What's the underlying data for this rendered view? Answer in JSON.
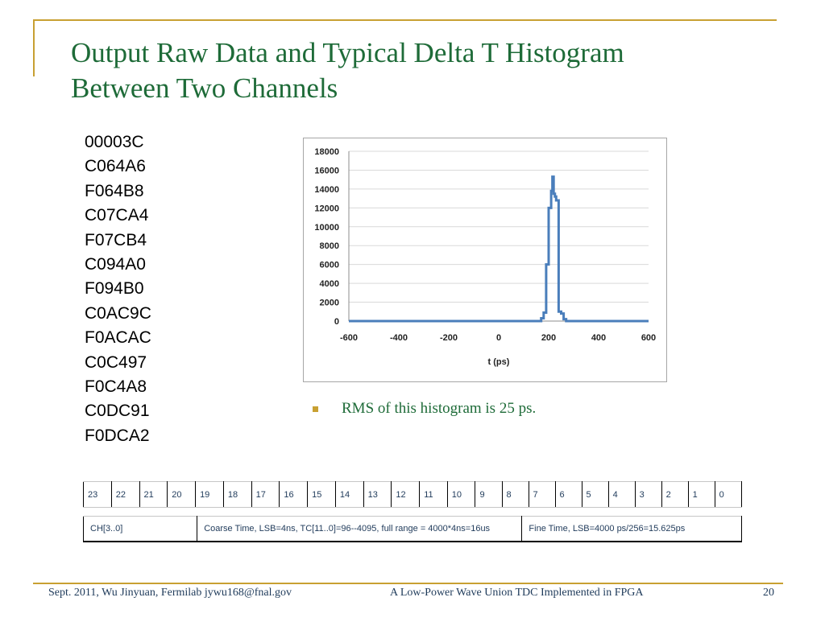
{
  "slide": {
    "title_line1": "Output Raw Data and Typical Delta T Histogram",
    "title_line2": "Between Two Channels",
    "raw_data": [
      "00003C",
      "C064A6",
      "F064B8",
      "C07CA4",
      "F07CB4",
      "C094A0",
      "F094B0",
      "C0AC9C",
      "F0ACAC",
      "C0C497",
      "F0C4A8",
      "C0DC91",
      "F0DCA2"
    ],
    "bullet": "RMS of this histogram is 25 ps."
  },
  "bit_table": {
    "bits": [
      "23",
      "22",
      "21",
      "20",
      "19",
      "18",
      "17",
      "16",
      "15",
      "14",
      "13",
      "12",
      "11",
      "10",
      "9",
      "8",
      "7",
      "6",
      "5",
      "4",
      "3",
      "2",
      "1",
      "0"
    ],
    "fields": [
      {
        "label": "CH[3..0]"
      },
      {
        "label": "Coarse Time, LSB=4ns, TC[11..0]=96--4095, full range = 4000*4ns=16us"
      },
      {
        "label": "Fine Time, LSB=4000 ps/256=15.625ps"
      }
    ]
  },
  "footer": {
    "left": "Sept. 2011, Wu Jinyuan, Fermilab jywu168@fnal.gov",
    "center": "A Low-Power Wave Union TDC Implemented in FPGA",
    "page": "20"
  },
  "colors": {
    "title": "#1e6b38",
    "accent": "#c8a032",
    "series": "#4a7ebb"
  },
  "chart_data": {
    "type": "line",
    "title": "",
    "xlabel": "t (ps)",
    "ylabel": "",
    "xlim": [
      -600,
      600
    ],
    "ylim": [
      0,
      18000
    ],
    "xticks": [
      -600,
      -400,
      -200,
      0,
      200,
      400,
      600
    ],
    "yticks": [
      0,
      2000,
      4000,
      6000,
      8000,
      10000,
      12000,
      14000,
      16000,
      18000
    ],
    "grid": "horizontal",
    "legend": "none",
    "series": [
      {
        "name": "",
        "x": [
          -600,
          150,
          160,
          170,
          180,
          190,
          200,
          210,
          215,
          220,
          225,
          230,
          240,
          250,
          260,
          270,
          280,
          600
        ],
        "y": [
          0,
          0,
          0,
          300,
          900,
          6000,
          12000,
          13800,
          15300,
          13500,
          13200,
          12800,
          1000,
          800,
          200,
          0,
          0,
          0
        ]
      }
    ]
  }
}
